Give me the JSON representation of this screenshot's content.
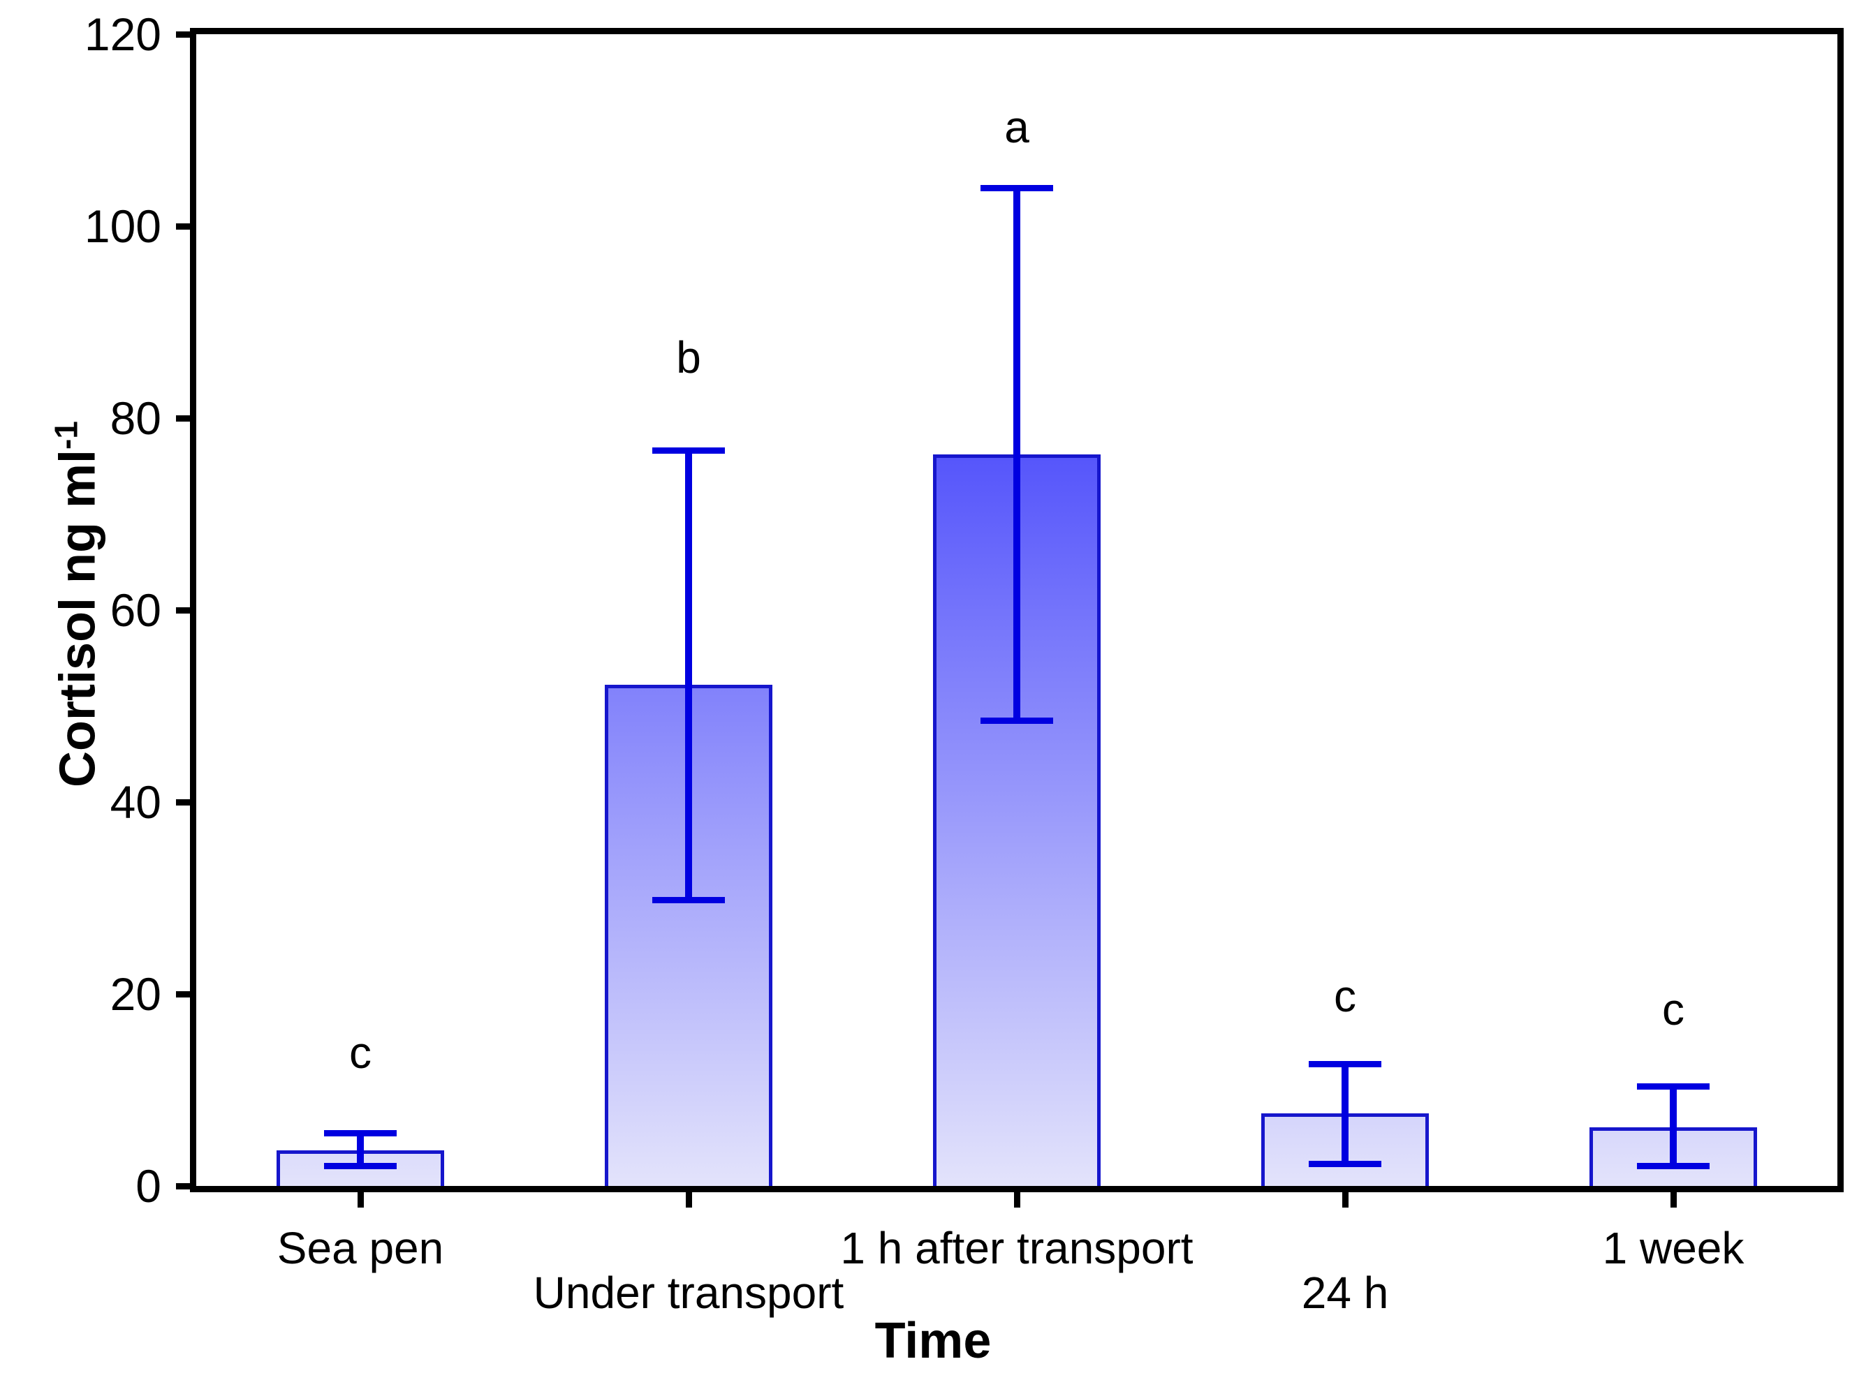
{
  "chart_data": {
    "type": "bar",
    "title": "",
    "xlabel": "Time",
    "ylabel_main": "Cortisol ng ml",
    "ylabel_superscript": "-1",
    "categories": [
      "Sea pen",
      "Under transport",
      "1 h after transport",
      "24 h",
      "1 week"
    ],
    "values": [
      3.7,
      52.2,
      76.2,
      7.6,
      6.1
    ],
    "error_low": [
      2.1,
      29.8,
      48.5,
      2.3,
      2.1
    ],
    "error_high": [
      5.5,
      76.6,
      104,
      12.7,
      10.4
    ],
    "sig_letters": [
      "c",
      "b",
      "a",
      "c",
      "c"
    ],
    "sig_letter_y": [
      13.9,
      86.3,
      110.3,
      19.8,
      18.4
    ],
    "label_row": [
      1,
      2,
      1,
      2,
      1
    ],
    "ylim": [
      0,
      120
    ],
    "yticks": [
      "0",
      "20",
      "40",
      "60",
      "80",
      "100",
      "120"
    ],
    "grid": false,
    "legend": null,
    "colors": {
      "error_bar": "#0000e0",
      "bar_border": "#1616cc",
      "bar_fill_bottom": "#e3e3fb",
      "bar_fill_top_at_max": "#5656fb",
      "axis": "#000000",
      "background": "#ffffff"
    }
  }
}
